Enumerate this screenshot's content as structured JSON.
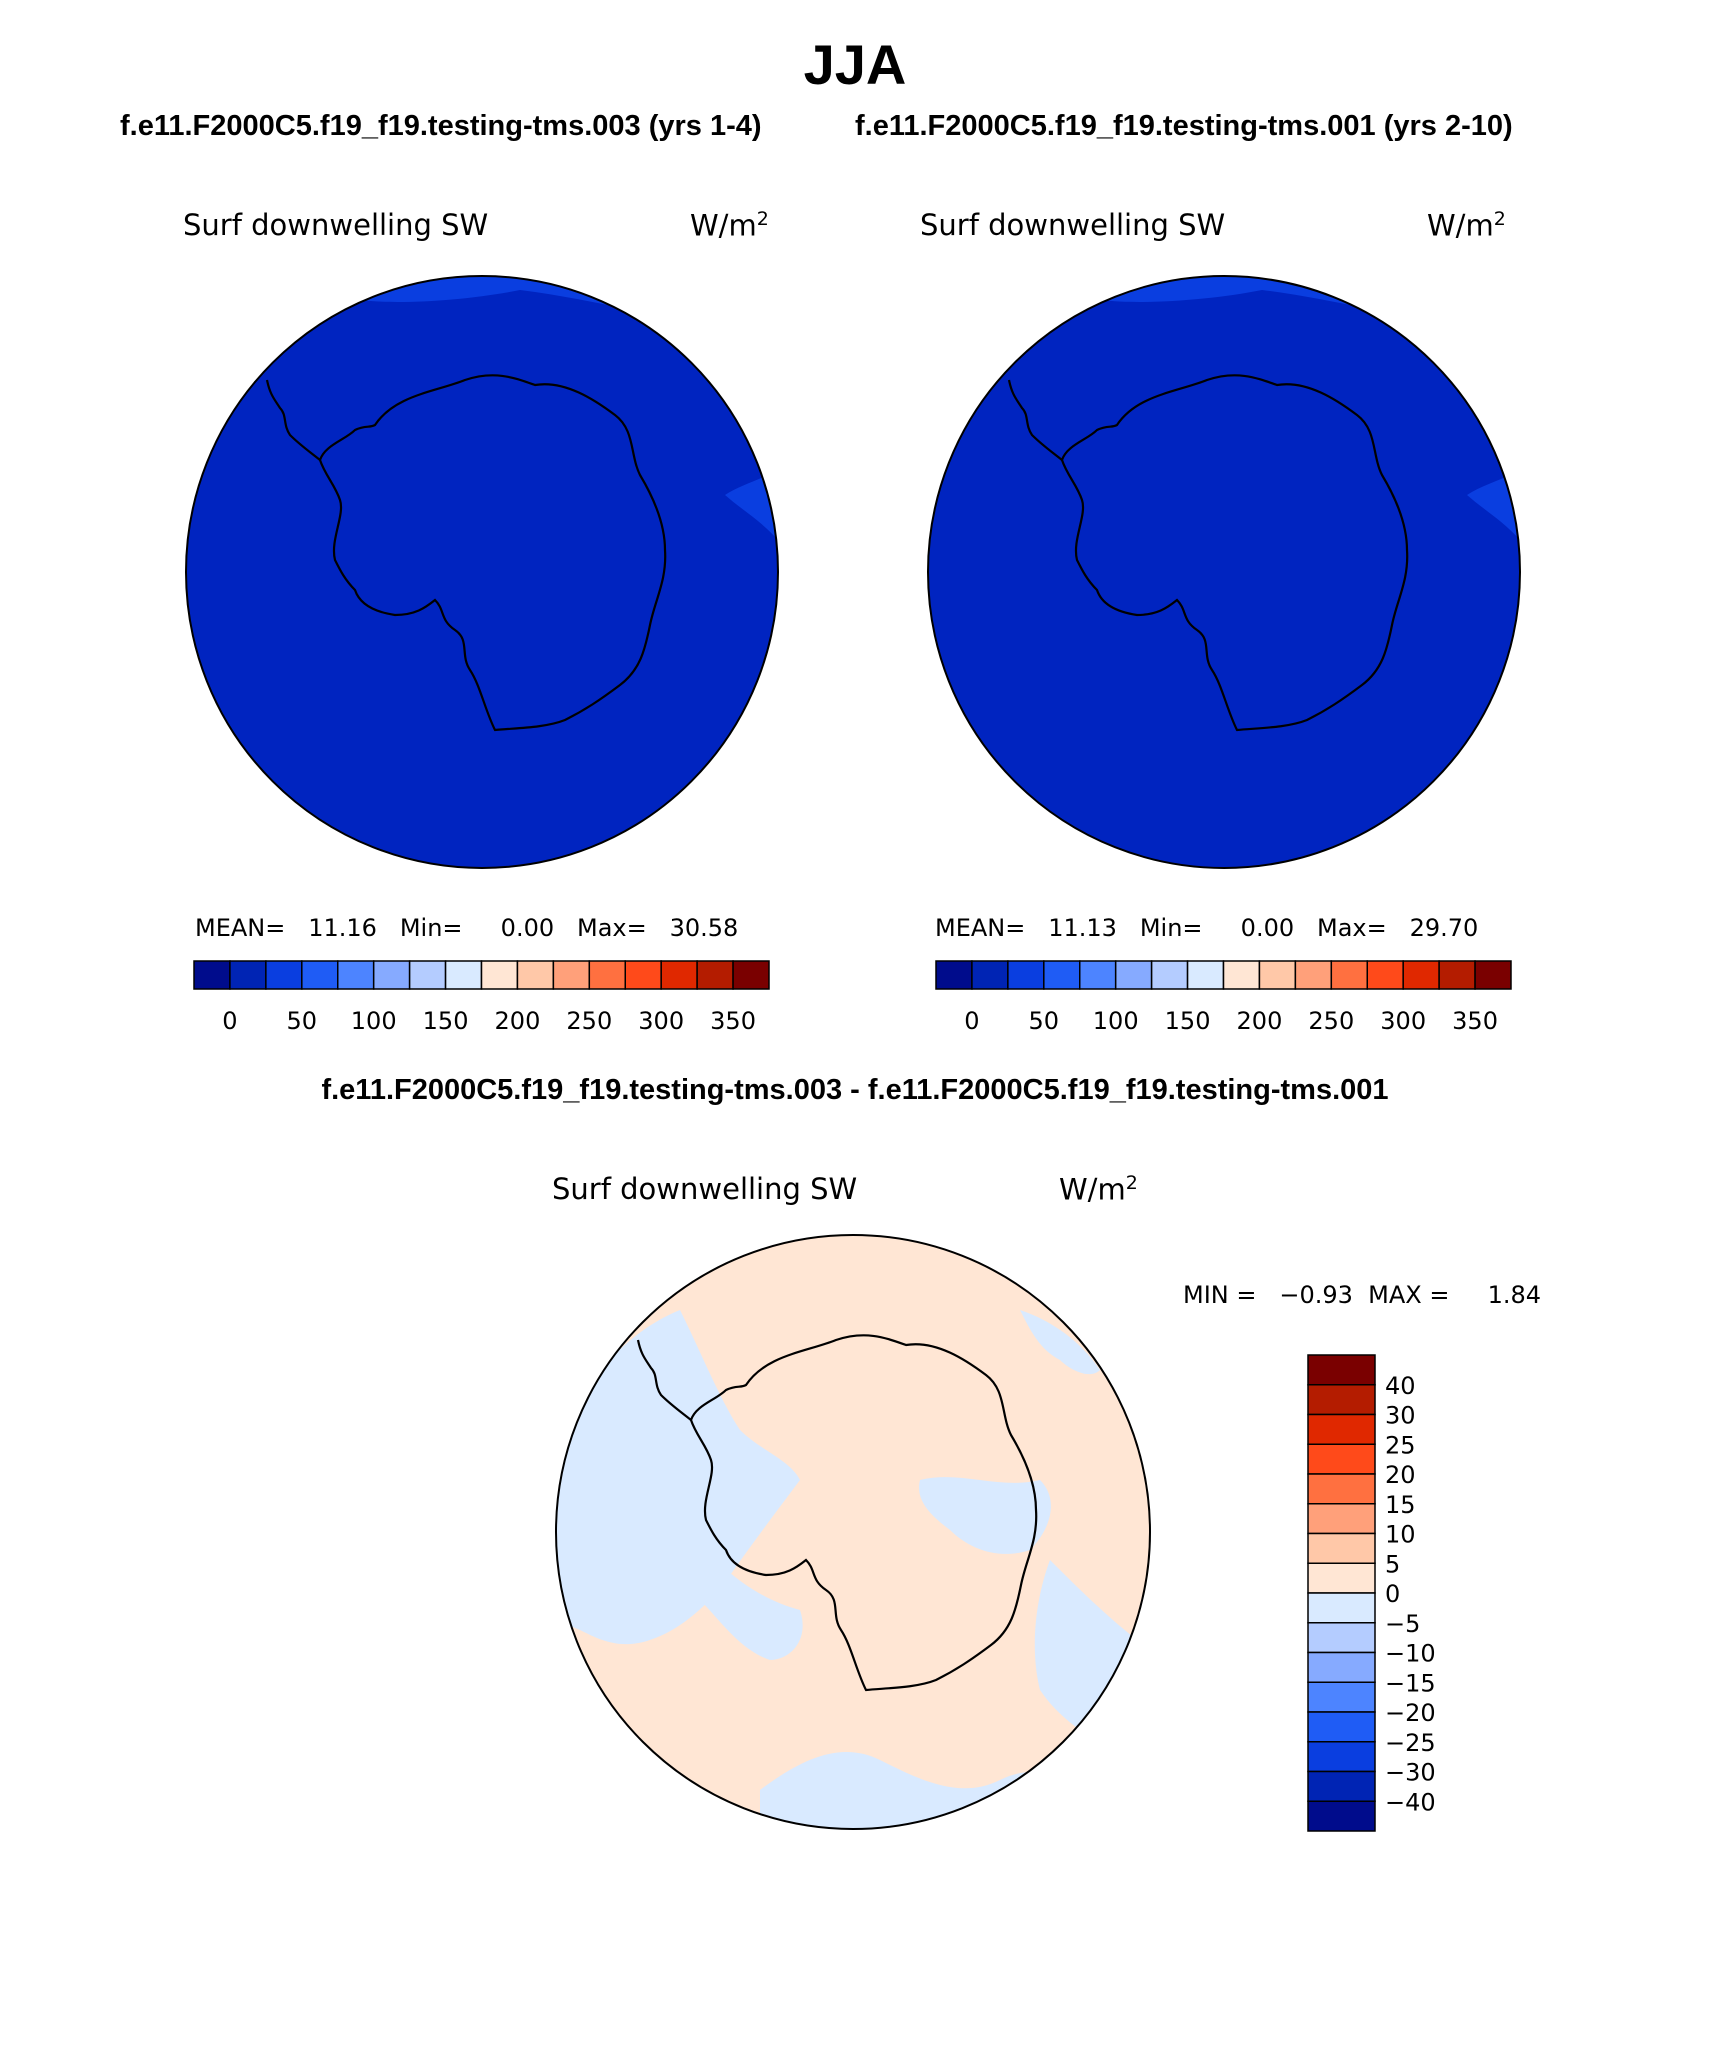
{
  "season": "JJA",
  "case_a": "f.e11.F2000C5.f19_f19.testing-tms.003 (yrs 1-4)",
  "case_b": "f.e11.F2000C5.f19_f19.testing-tms.001 (yrs 2-10)",
  "diff_title": "f.e11.F2000C5.f19_f19.testing-tms.003 - f.e11.F2000C5.f19_f19.testing-tms.001",
  "panels": [
    {
      "variable": "Surf downwelling SW",
      "units": "W/m",
      "units_sup": "2",
      "stats_text": "MEAN=   11.16   Min=     0.00   Max=   30.58"
    },
    {
      "variable": "Surf downwelling SW",
      "units": "W/m",
      "units_sup": "2",
      "stats_text": "MEAN=   11.13   Min=     0.00   Max=   29.70"
    }
  ],
  "diff_panel": {
    "variable": "Surf downwelling SW",
    "units": "W/m",
    "units_sup": "2",
    "stats_text": "MIN =   −0.93  MAX =     1.84"
  },
  "colorbar_abs": {
    "colors": [
      "#000c8c",
      "#0024b4",
      "#0a3ee0",
      "#1f5cf5",
      "#4d84ff",
      "#86aaff",
      "#b4ccff",
      "#d9eaff",
      "#ffe6d4",
      "#ffc8a8",
      "#ffa07a",
      "#ff7040",
      "#ff4a1a",
      "#e02800",
      "#b41c00",
      "#7a0000"
    ],
    "labels": [
      "0",
      "50",
      "100",
      "150",
      "200",
      "250",
      "300",
      "350"
    ]
  },
  "colorbar_diff": {
    "colors": [
      "#7a0000",
      "#b41c00",
      "#e02800",
      "#ff4a1a",
      "#ff7040",
      "#ffa07a",
      "#ffc8a8",
      "#ffe6d4",
      "#d9eaff",
      "#b4ccff",
      "#86aaff",
      "#4d84ff",
      "#1f5cf5",
      "#0a3ee0",
      "#0024b4",
      "#000c8c"
    ],
    "labels": [
      "40",
      "30",
      "25",
      "20",
      "15",
      "10",
      "5",
      "0",
      "−5",
      "−10",
      "−15",
      "−20",
      "−25",
      "−30",
      "−40"
    ]
  },
  "map_colors": {
    "abs_fill": "#0024c0",
    "abs_edge": "#0a3ee0",
    "diff_pos": "#ffe6d4",
    "diff_neg": "#d9eaff"
  }
}
